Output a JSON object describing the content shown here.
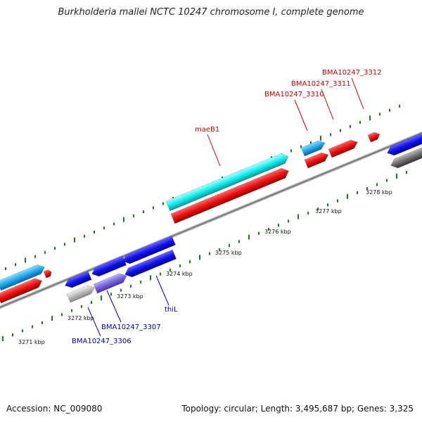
{
  "title": "Burkholderia mallei NCTC 10247 chromosome I, complete genome",
  "footer": {
    "accession": "Accession: NC_009080",
    "stats": "Topology: circular; Length: 3,495,687 bp; Genes: 3,325"
  },
  "colors": {
    "backbone": "#8a8a8a",
    "tick": "#1a7a1a",
    "forward_cds": "#dd1111",
    "forward_label": "#cc0000",
    "reverse_cds": "#1111dd",
    "reverse_label": "#0000aa",
    "rna_cyan": "#11eeee",
    "light_blue": "#22aaee",
    "grey_feature": "#707070",
    "light_grey_feature": "#bbbbbb",
    "purple_feature": "#7766dd"
  },
  "scale_labels": [
    "3271 kbp",
    "3272 kbp",
    "3273 kbp",
    "3274 kbp",
    "3275 kbp",
    "3276 kbp",
    "3277 kbp",
    "3278 kbp"
  ],
  "gene_labels": {
    "forward": [
      "maeB1",
      "BMA10247_3310",
      "BMA10247_3311",
      "BMA10247_3312"
    ],
    "reverse": [
      "thiL",
      "BMA10247_3307",
      "BMA10247_3306"
    ]
  }
}
